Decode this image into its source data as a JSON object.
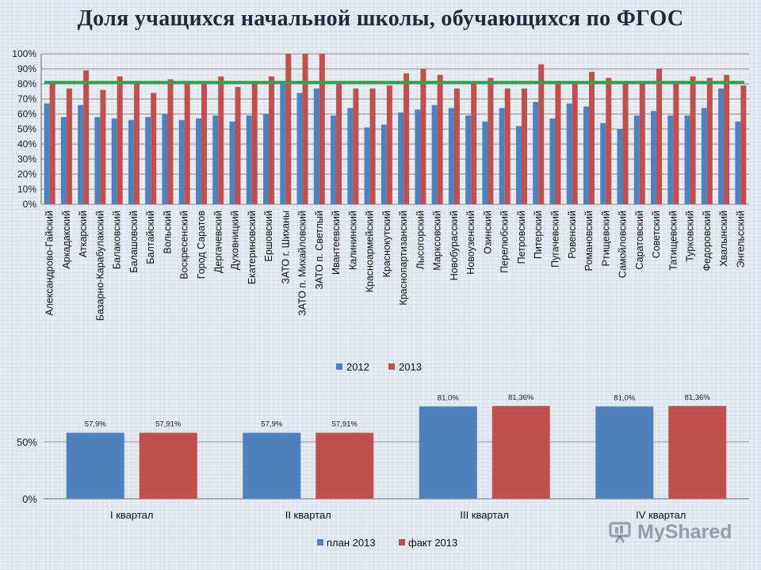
{
  "header": {
    "title": "Доля учащихся начальной школы, обучающихся по ФГОС"
  },
  "watermark": {
    "text": "MyShared"
  },
  "colors": {
    "blue": "#4f81bd",
    "red": "#c0504d",
    "green": "#2ea44f"
  },
  "chart_data": [
    {
      "type": "bar",
      "title": "",
      "xlabel": "",
      "ylabel": "",
      "ylim": [
        0,
        100
      ],
      "yticks": [
        "0%",
        "10%",
        "20%",
        "30%",
        "40%",
        "50%",
        "60%",
        "70%",
        "80%",
        "90%",
        "100%"
      ],
      "categories": [
        "Александрово-Гайский",
        "Аркадакский",
        "Аткарский",
        "Базарно-Карабулакский",
        "Балаковский",
        "Балашовский",
        "Балтайский",
        "Вольский",
        "Воскресенский",
        "Город Саратов",
        "Дергачевский",
        "Духовницкий",
        "Екатериновский",
        "Ершовский",
        "ЗАТО г. Шиханы",
        "ЗАТО п. Михайловский",
        "ЗАТО п. Светлый",
        "Ивантеевский",
        "Калининский",
        "Красноармейский",
        "Краснокутский",
        "Краснопартизанский",
        "Лысогорский",
        "Марксовский",
        "Новобурасский",
        "Новоузенский",
        "Озинский",
        "Перелюбский",
        "Петровский",
        "Питерский",
        "Пугачевский",
        "Ровенский",
        "Романовский",
        "Ртищевский",
        "Самойловский",
        "Саратовский",
        "Советский",
        "Татищевский",
        "Турковский",
        "Федоровский",
        "Хвалынский",
        "Энгельсский"
      ],
      "series": [
        {
          "name": "2012",
          "values": [
            67,
            58,
            66,
            58,
            57,
            56,
            58,
            60,
            56,
            57,
            59,
            55,
            59,
            60,
            82,
            74,
            77,
            59,
            64,
            51,
            53,
            61,
            63,
            66,
            64,
            59,
            55,
            64,
            52,
            68,
            57,
            67,
            65,
            54,
            50,
            59,
            62,
            59,
            59,
            64,
            77,
            55
          ]
        },
        {
          "name": "2013",
          "values": [
            80,
            77,
            89,
            76,
            85,
            80,
            74,
            83,
            80,
            80,
            85,
            78,
            80,
            85,
            100,
            100,
            100,
            80,
            77,
            77,
            79,
            87,
            90,
            86,
            77,
            80,
            84,
            77,
            77,
            93,
            80,
            80,
            88,
            84,
            80,
            80,
            90,
            80,
            85,
            84,
            86,
            79
          ]
        }
      ],
      "target_line": 81,
      "legend": [
        "2012",
        "2013"
      ],
      "legend_position": "bottom"
    },
    {
      "type": "bar",
      "title": "",
      "xlabel": "",
      "ylabel": "",
      "ylim": [
        0,
        100
      ],
      "yticks": [
        "0%",
        "50%"
      ],
      "categories": [
        "I квартал",
        "II квартал",
        "III квартал",
        "IV квартал"
      ],
      "series": [
        {
          "name": "план 2013",
          "values": [
            57.9,
            57.9,
            81.0,
            81.0
          ],
          "labels": [
            "57,9%",
            "57,9%",
            "81,0%",
            "81,0%"
          ]
        },
        {
          "name": "факт 2013",
          "values": [
            57.91,
            57.91,
            81.36,
            81.36
          ],
          "labels": [
            "57,91%",
            "57,91%",
            "81,36%",
            "81,36%"
          ]
        }
      ],
      "legend": [
        "план 2013",
        "факт 2013"
      ],
      "legend_position": "bottom"
    }
  ]
}
